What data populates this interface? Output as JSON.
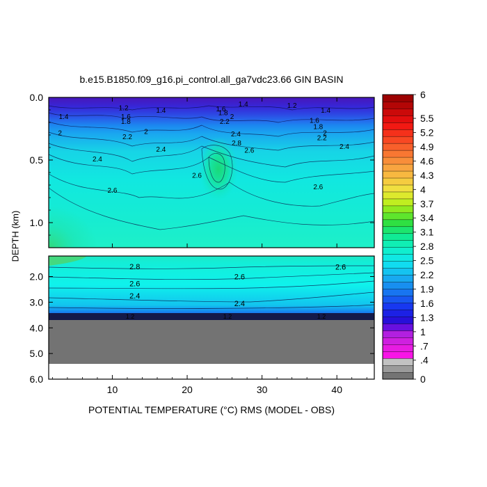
{
  "chart_data": {
    "type": "heatmap",
    "title": "b.e15.B1850.f09_g16.pi_control.all_ga7vdc23.66 GIN BASIN",
    "xlabel": "POTENTIAL TEMPERATURE (°C) RMS (MODEL - OBS)",
    "ylabel": "DEPTH (km)",
    "xlim": [
      1.5,
      45
    ],
    "x_ticks": [
      "10",
      "20",
      "30",
      "40"
    ],
    "x_tick_values": [
      10,
      20,
      30,
      40
    ],
    "upper_panel": {
      "ylim": [
        0,
        1.2
      ],
      "y_ticks": [
        "0.0",
        "0.5",
        "1.0"
      ],
      "y_tick_values": [
        0,
        0.5,
        1.0
      ]
    },
    "lower_panel": {
      "ylim": [
        1.2,
        6.0
      ],
      "y_ticks": [
        "2.0",
        "3.0",
        "4.0",
        "5.0",
        "6.0"
      ],
      "y_tick_values": [
        2,
        3,
        4,
        5,
        6
      ],
      "ocean_floor_depth_km": 3.6,
      "missing_below_km": 5.35
    },
    "colorbar": {
      "labels": [
        "6",
        "5.5",
        "5.2",
        "4.9",
        "4.6",
        "4.3",
        "4",
        "3.7",
        "3.4",
        "3.1",
        "2.8",
        "2.5",
        "2.2",
        "1.9",
        "1.6",
        "1.3",
        "1",
        ".7",
        ".4",
        "0"
      ],
      "label_values": [
        6,
        5.5,
        5.2,
        4.9,
        4.6,
        4.3,
        4.0,
        3.7,
        3.4,
        3.1,
        2.8,
        2.5,
        2.2,
        1.9,
        1.6,
        1.3,
        1.0,
        0.7,
        0.4,
        0
      ],
      "n_levels": 41
    },
    "contour_labels_upper": [
      {
        "text": "1.2",
        "x": 11.5,
        "y": 0.08
      },
      {
        "text": "1.4",
        "x": 16.5,
        "y": 0.1
      },
      {
        "text": "1.6",
        "x": 24.5,
        "y": 0.09
      },
      {
        "text": "1.4",
        "x": 27.5,
        "y": 0.05
      },
      {
        "text": "1.2",
        "x": 34,
        "y": 0.06
      },
      {
        "text": "1.4",
        "x": 3.5,
        "y": 0.15
      },
      {
        "text": "1.6",
        "x": 11.8,
        "y": 0.15
      },
      {
        "text": "1.8",
        "x": 11.8,
        "y": 0.19
      },
      {
        "text": "1.8",
        "x": 24.8,
        "y": 0.12
      },
      {
        "text": "2",
        "x": 26,
        "y": 0.15
      },
      {
        "text": "2.2",
        "x": 25,
        "y": 0.19
      },
      {
        "text": "2",
        "x": 3,
        "y": 0.28
      },
      {
        "text": "2",
        "x": 14.5,
        "y": 0.27
      },
      {
        "text": "2.2",
        "x": 12,
        "y": 0.31
      },
      {
        "text": "2.4",
        "x": 16.5,
        "y": 0.41
      },
      {
        "text": "2.4",
        "x": 26.5,
        "y": 0.29
      },
      {
        "text": "2.8",
        "x": 26.6,
        "y": 0.36
      },
      {
        "text": "2.6",
        "x": 28.3,
        "y": 0.42
      },
      {
        "text": "2.4",
        "x": 8,
        "y": 0.49
      },
      {
        "text": "2.6",
        "x": 21.3,
        "y": 0.62
      },
      {
        "text": "2.6",
        "x": 10,
        "y": 0.74
      },
      {
        "text": "1.4",
        "x": 38.5,
        "y": 0.1
      },
      {
        "text": "1.6",
        "x": 37,
        "y": 0.18
      },
      {
        "text": "1.8",
        "x": 37.5,
        "y": 0.23
      },
      {
        "text": "2",
        "x": 38.4,
        "y": 0.28
      },
      {
        "text": "2.2",
        "x": 38,
        "y": 0.32
      },
      {
        "text": "2.4",
        "x": 41,
        "y": 0.39
      },
      {
        "text": "2.6",
        "x": 37.5,
        "y": 0.71
      }
    ],
    "contour_labels_lower": [
      {
        "text": "2.8",
        "x": 13,
        "y": 1.6
      },
      {
        "text": "2.6",
        "x": 13,
        "y": 2.27
      },
      {
        "text": "2.4",
        "x": 13,
        "y": 2.75
      },
      {
        "text": "2.6",
        "x": 27,
        "y": 2.0
      },
      {
        "text": "2.6",
        "x": 40.5,
        "y": 1.62
      },
      {
        "text": "2.4",
        "x": 27,
        "y": 3.05
      }
    ]
  }
}
